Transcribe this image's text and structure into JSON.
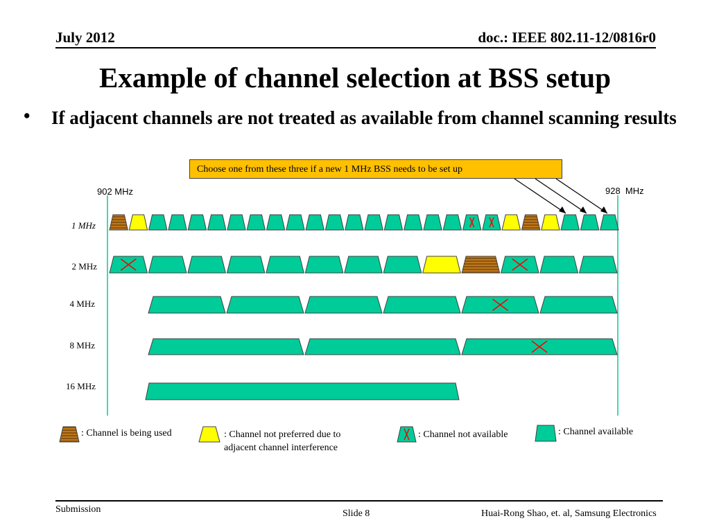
{
  "header": {
    "date": "July 2012",
    "doc_id": "doc.: IEEE 802.11-12/0816r0"
  },
  "title": "Example of channel selection at BSS setup",
  "bullet": "If adjacent channels are not treated as available from channel scanning results",
  "callout": "Choose one from these three if a new 1 MHz BSS needs to be set up",
  "freq_labels": {
    "start": "902 MHz",
    "end": "928  MHz"
  },
  "rows": [
    {
      "label": "1 MHz",
      "channels": [
        "used",
        "not-preferred",
        "available",
        "available",
        "available",
        "available",
        "available",
        "available",
        "available",
        "available",
        "available",
        "available",
        "available",
        "available",
        "available",
        "available",
        "available",
        "available",
        "unavailable",
        "unavailable",
        "not-preferred",
        "used",
        "not-preferred",
        "available",
        "available",
        "available"
      ]
    },
    {
      "label": "2 MHz",
      "channels": [
        "unavailable",
        "available",
        "available",
        "available",
        "available",
        "available",
        "available",
        "available",
        "not-preferred",
        "used",
        "unavailable",
        "available",
        "available"
      ]
    },
    {
      "label": "4 MHz",
      "channels": [
        "available",
        "available",
        "available",
        "available",
        "unavailable",
        "available"
      ]
    },
    {
      "label": "8 MHz",
      "channels": [
        "available",
        "available",
        "unavailable"
      ]
    },
    {
      "label": "16 MHz",
      "channels": [
        "available"
      ]
    }
  ],
  "colors": {
    "available": "#00cc99",
    "not_preferred": "#ffff00",
    "used_base": "#c07818",
    "used_stripe": "#8a5410",
    "unavailable_mark": "#ff0000",
    "callout_bg": "#ffc000"
  },
  "legend": {
    "used": ": Channel is being used",
    "not_preferred_line1": ": Channel not preferred due to",
    "not_preferred_line2": "adjacent channel interference",
    "unavailable": ": Channel not available",
    "available": ": Channel available"
  },
  "footer": {
    "left": "Submission",
    "center": "Slide 8",
    "right": "Huai-Rong Shao, et. al, Samsung Electronics"
  }
}
